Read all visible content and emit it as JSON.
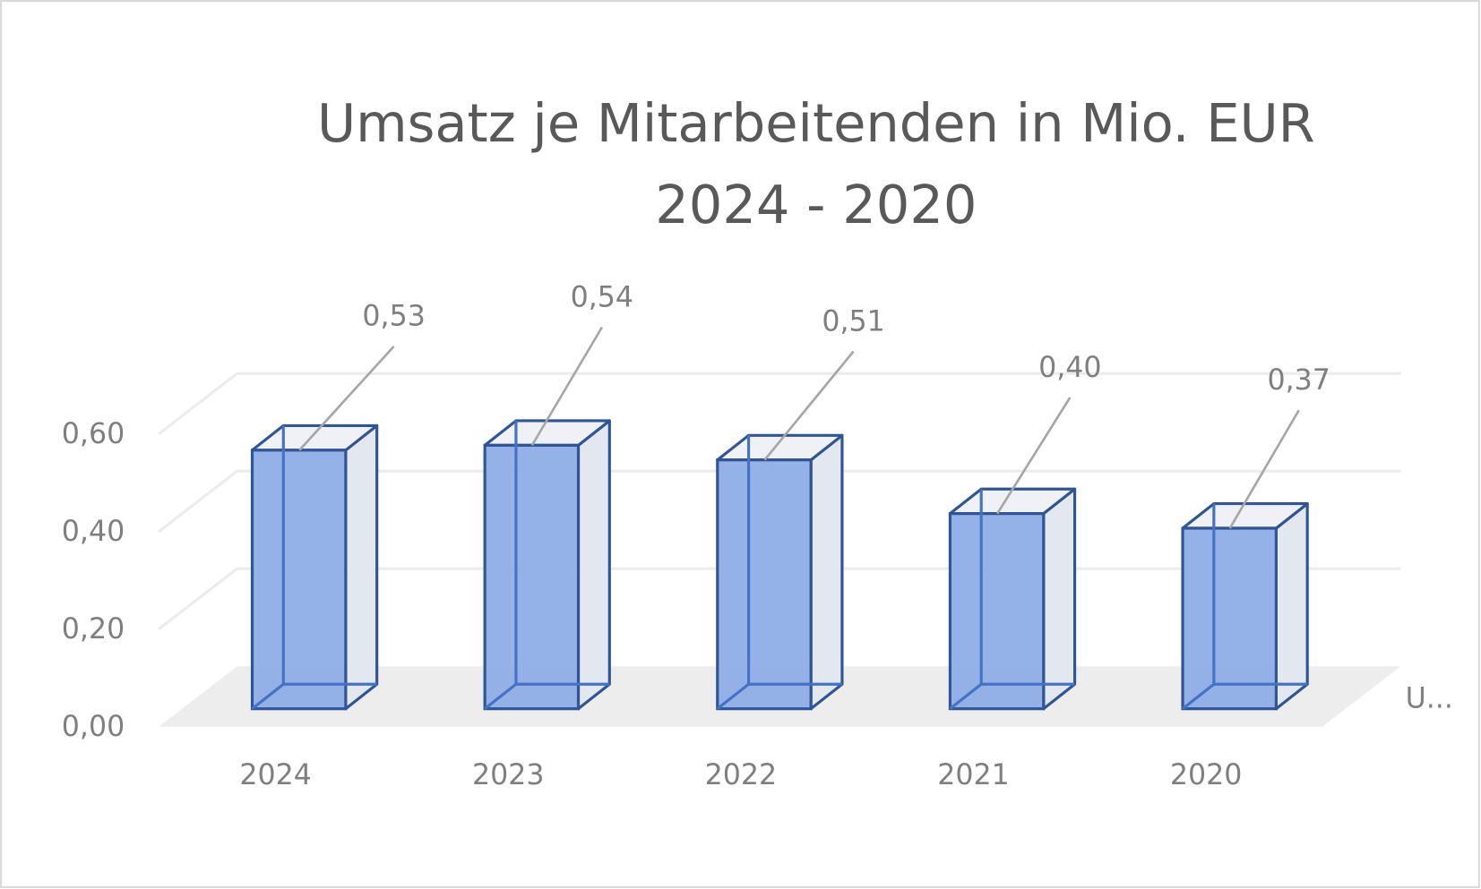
{
  "chart_data": {
    "type": "bar",
    "style": "3d-column",
    "title_lines": [
      "Umsatz je Mitarbeitenden in Mio. EUR",
      "2024 - 2020"
    ],
    "categories": [
      "2024",
      "2023",
      "2022",
      "2021",
      "2020"
    ],
    "values": [
      0.53,
      0.54,
      0.51,
      0.4,
      0.37
    ],
    "data_labels": [
      "0,53",
      "0,54",
      "0,51",
      "0,40",
      "0,37"
    ],
    "y_ticks": [
      "0,00",
      "0,20",
      "0,40",
      "0,60"
    ],
    "ylim": [
      0,
      0.6
    ],
    "grid": true,
    "legend": {
      "position": "right",
      "text": "U..."
    },
    "xlabel": "",
    "ylabel": "",
    "colors": {
      "bar_fill": "#8eaee6",
      "bar_edge": "#2f5597",
      "side_fill": "#e3e7ef",
      "floor": "#ededed",
      "grid": "#ececec",
      "text": "#7f7f7f",
      "title": "#595959"
    }
  }
}
